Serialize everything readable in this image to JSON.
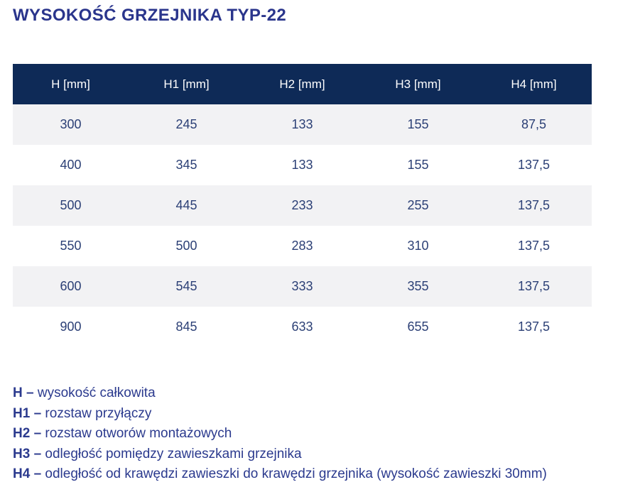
{
  "page": {
    "title": "WYSOKOŚĆ GRZEJNIKA TYP-22"
  },
  "table": {
    "columns": [
      "H [mm]",
      "H1 [mm]",
      "H2 [mm]",
      "H3 [mm]",
      "H4 [mm]"
    ],
    "rows": [
      [
        "300",
        "245",
        "133",
        "155",
        "87,5"
      ],
      [
        "400",
        "345",
        "133",
        "155",
        "137,5"
      ],
      [
        "500",
        "445",
        "233",
        "255",
        "137,5"
      ],
      [
        "550",
        "500",
        "283",
        "310",
        "137,5"
      ],
      [
        "600",
        "545",
        "333",
        "355",
        "137,5"
      ],
      [
        "900",
        "845",
        "633",
        "655",
        "137,5"
      ]
    ]
  },
  "legend": [
    {
      "term": "H –",
      "description": "wysokość całkowita"
    },
    {
      "term": "H1 –",
      "description": "rozstaw przyłączy"
    },
    {
      "term": "H2 –",
      "description": "rozstaw otworów montażowych"
    },
    {
      "term": "H3 –",
      "description": "odległość pomiędzy zawieszkami grzejnika"
    },
    {
      "term": "H4 –",
      "description": "odległość od krawędzi zawieszki do krawędzi grzejnika (wysokość zawieszki 30mm)"
    }
  ],
  "colors": {
    "header_bg": "#0e2a57",
    "header_text": "#ffffff",
    "row_alt_bg": "#f2f2f4",
    "row_plain_bg": "#ffffff",
    "cell_text": "#2c4076",
    "title_text": "#2a358c",
    "legend_text": "#2b3a8e"
  }
}
